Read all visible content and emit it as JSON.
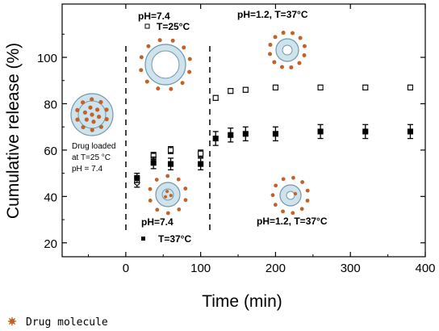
{
  "chart_data": {
    "type": "scatter",
    "xlabel": "Time (min)",
    "ylabel": "Cumulative release (%)",
    "xlim": [
      -85,
      400
    ],
    "ylim": [
      14,
      123
    ],
    "xticks": [
      0,
      100,
      200,
      300,
      400
    ],
    "yticks": [
      20,
      40,
      60,
      80,
      100
    ],
    "grid": false,
    "phase_boundaries_min": [
      0,
      110
    ],
    "series": [
      {
        "marker": "open-square",
        "points": [
          {
            "x": 15,
            "y": 46,
            "err": 2
          },
          {
            "x": 37,
            "y": 57.5,
            "err": 1.5
          },
          {
            "x": 60,
            "y": 60,
            "err": 1.5
          },
          {
            "x": 100,
            "y": 58.5,
            "err": 1.5
          },
          {
            "x": 120,
            "y": 82.5,
            "err": 1
          },
          {
            "x": 140,
            "y": 85.5,
            "err": 1
          },
          {
            "x": 160,
            "y": 86,
            "err": 1
          },
          {
            "x": 200,
            "y": 87,
            "err": 1
          },
          {
            "x": 260,
            "y": 87,
            "err": 1
          },
          {
            "x": 320,
            "y": 87,
            "err": 1
          },
          {
            "x": 380,
            "y": 87,
            "err": 1
          }
        ]
      },
      {
        "marker": "filled-square",
        "points": [
          {
            "x": 15,
            "y": 48,
            "err": 2
          },
          {
            "x": 37,
            "y": 54.5,
            "err": 2.5
          },
          {
            "x": 60,
            "y": 54,
            "err": 2.5
          },
          {
            "x": 100,
            "y": 54,
            "err": 2.5
          },
          {
            "x": 120,
            "y": 65,
            "err": 3
          },
          {
            "x": 140,
            "y": 66.5,
            "err": 3
          },
          {
            "x": 160,
            "y": 67,
            "err": 3
          },
          {
            "x": 200,
            "y": 67,
            "err": 3
          },
          {
            "x": 260,
            "y": 68,
            "err": 3
          },
          {
            "x": 320,
            "y": 68,
            "err": 3
          },
          {
            "x": 380,
            "y": 68,
            "err": 3
          }
        ]
      }
    ],
    "annotations": {
      "top_left": {
        "line1": "pH=7.4",
        "line2": "T=25°C"
      },
      "top_right": {
        "line1": "pH=1.2, T=37°C"
      },
      "loaded": {
        "line1": "Drug loaded",
        "line2": "at T=25 °C",
        "line3": "pH = 7.4"
      },
      "bottom_left": {
        "line1": "pH=7.4",
        "line2": "T=37°C"
      },
      "bottom_right": {
        "line1": "pH=1.2, T=37°C"
      }
    }
  },
  "legend": {
    "label": "Drug molecule"
  },
  "colors": {
    "drug_dot": "#c0622a",
    "particle_fill": "#cfe3ec",
    "particle_stroke": "#6f97ad",
    "axis": "#000000"
  }
}
